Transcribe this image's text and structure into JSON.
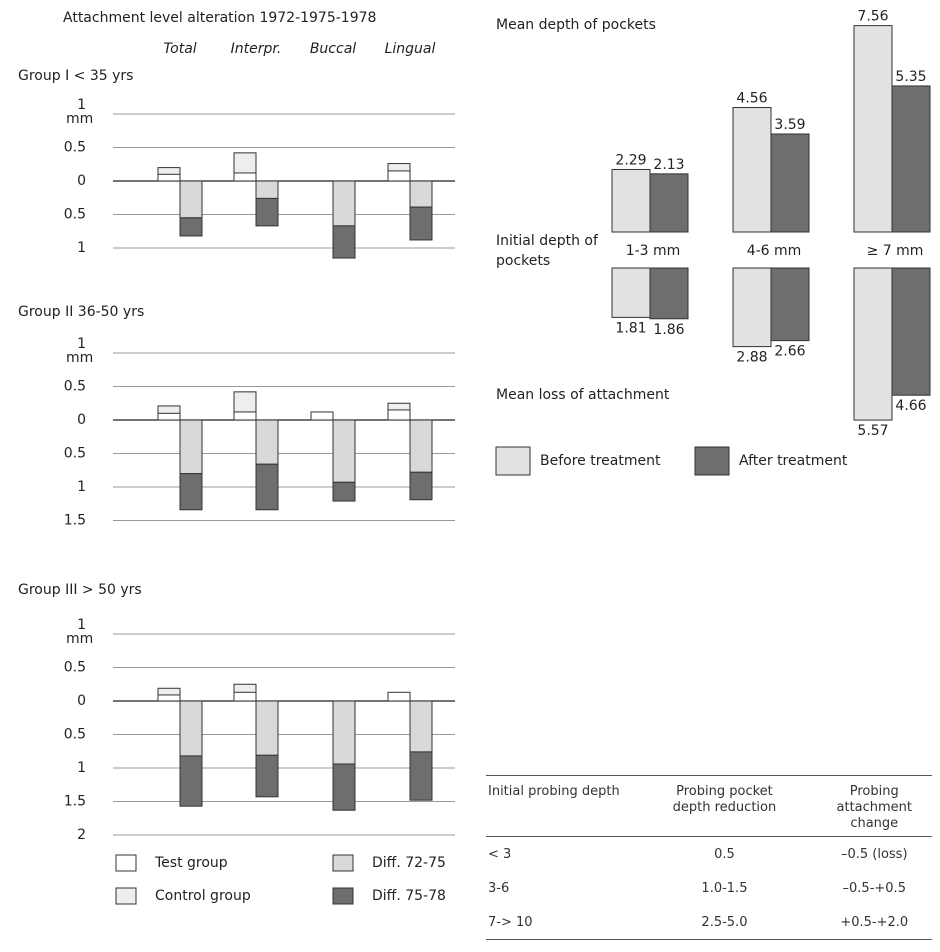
{
  "chart_data": [
    {
      "type": "stacked_bar",
      "title": "Attachment level alteration 1972-1975-1978",
      "categories": [
        "Total",
        "Interpr.",
        "Buccal",
        "Lingual"
      ],
      "series": [
        {
          "name": "Test group",
          "color": "#ffffff"
        },
        {
          "name": "Control group",
          "color": "#eeeeee"
        },
        {
          "name": "Diff. 72-75",
          "color": "#d9d9d9"
        },
        {
          "name": "Diff. 75-78",
          "color": "#6e6e6e"
        }
      ],
      "panels": [
        {
          "title": "Group I < 35 yrs",
          "y_label": "mm",
          "ylim": [
            -1.25,
            1
          ],
          "yticks": [
            {
              "value": -1,
              "label": "1"
            },
            {
              "value": -0.5,
              "label": "0.5"
            },
            0,
            0.5,
            1
          ],
          "series": [
            {
              "values": [
                0.1,
                0.12,
                null,
                0.15
              ]
            },
            {
              "values": [
                0.2,
                0.42,
                null,
                0.26
              ]
            },
            {
              "values": [
                -0.55,
                -0.26,
                -0.67,
                -0.39
              ]
            },
            {
              "values": [
                -0.27,
                -0.41,
                -0.48,
                -0.49
              ]
            }
          ]
        },
        {
          "title": "Group II 36-50 yrs",
          "y_label": "mm",
          "ylim": [
            -1.5,
            1
          ],
          "yticks": [
            {
              "value": -1.5,
              "label": "1.5"
            },
            {
              "value": -1,
              "label": "1"
            },
            {
              "value": -0.5,
              "label": "0.5"
            },
            0,
            0.5,
            1
          ],
          "series": [
            {
              "values": [
                0.1,
                0.12,
                0.12,
                0.15
              ]
            },
            {
              "values": [
                0.21,
                0.42,
                null,
                0.25
              ]
            },
            {
              "values": [
                -0.8,
                -0.66,
                -0.93,
                -0.78
              ]
            },
            {
              "values": [
                -0.54,
                -0.68,
                -0.28,
                -0.41
              ]
            }
          ]
        },
        {
          "title": "Group III > 50 yrs",
          "y_label": "mm",
          "ylim": [
            -2,
            1
          ],
          "yticks": [
            {
              "value": -2,
              "label": "2"
            },
            {
              "value": -1.5,
              "label": "1.5"
            },
            {
              "value": -1,
              "label": "1"
            },
            {
              "value": -0.5,
              "label": "0.5"
            },
            0,
            0.5,
            1
          ],
          "series": [
            {
              "values": [
                0.09,
                0.13,
                null,
                0.13
              ]
            },
            {
              "values": [
                0.19,
                0.25,
                null,
                null
              ]
            },
            {
              "values": [
                -0.82,
                -0.81,
                -0.94,
                -0.76
              ]
            },
            {
              "values": [
                -0.75,
                -0.62,
                -0.69,
                -0.72
              ]
            }
          ]
        }
      ]
    },
    {
      "type": "bar",
      "title": "Mean depth of pockets",
      "x_label": "Initial depth of pockets",
      "subtitle": "Mean loss of attachment",
      "categories": [
        "1-3 mm",
        "4-6 mm",
        "≥ 7 mm"
      ],
      "series": [
        {
          "name": "Before treatment",
          "color": "#e2e2e2",
          "values": [
            2.29,
            4.56,
            7.56
          ],
          "loss_values": [
            1.81,
            2.88,
            5.57
          ]
        },
        {
          "name": "After treatment",
          "color": "#6e6e6e",
          "values": [
            2.13,
            3.59,
            5.35
          ],
          "loss_values": [
            1.86,
            2.66,
            4.66
          ]
        }
      ]
    }
  ],
  "table": {
    "header": [
      "Initial probing depth",
      "Probing pocket depth reduction",
      "Probing attachment change"
    ],
    "rows": [
      [
        "< 3",
        "0.5",
        "–0.5 (loss)"
      ],
      [
        "3-6",
        "1.0-1.5",
        "–0.5-+0.5"
      ],
      [
        "7-> 10",
        "2.5-5.0",
        "+0.5-+2.0"
      ]
    ]
  }
}
